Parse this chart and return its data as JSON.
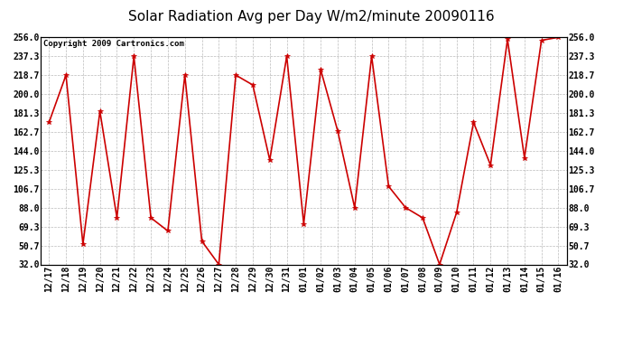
{
  "title": "Solar Radiation Avg per Day W/m2/minute 20090116",
  "copyright": "Copyright 2009 Cartronics.com",
  "x_labels": [
    "12/17",
    "12/18",
    "12/19",
    "12/20",
    "12/21",
    "12/22",
    "12/23",
    "12/24",
    "12/25",
    "12/26",
    "12/27",
    "12/28",
    "12/29",
    "12/30",
    "12/31",
    "01/01",
    "01/02",
    "01/03",
    "01/04",
    "01/05",
    "01/06",
    "01/07",
    "01/08",
    "01/09",
    "01/10",
    "01/11",
    "01/12",
    "01/13",
    "01/14",
    "01/15",
    "01/16"
  ],
  "y_values": [
    172.0,
    218.7,
    52.0,
    183.0,
    78.0,
    237.3,
    78.0,
    65.0,
    218.7,
    55.0,
    32.0,
    218.7,
    209.0,
    135.0,
    237.3,
    72.0,
    224.0,
    163.7,
    88.0,
    237.3,
    109.0,
    88.0,
    78.0,
    32.0,
    83.0,
    172.0,
    130.0,
    254.0,
    137.0,
    253.0,
    256.0
  ],
  "y_ticks": [
    32.0,
    50.7,
    69.3,
    88.0,
    106.7,
    125.3,
    144.0,
    162.7,
    181.3,
    200.0,
    218.7,
    237.3,
    256.0
  ],
  "line_color": "#cc0000",
  "marker": "*",
  "marker_color": "#cc0000",
  "bg_color": "#ffffff",
  "grid_color": "#aaaaaa",
  "title_fontsize": 11,
  "copyright_fontsize": 6.5,
  "tick_fontsize": 7,
  "ylim_min": 32.0,
  "ylim_max": 256.0
}
